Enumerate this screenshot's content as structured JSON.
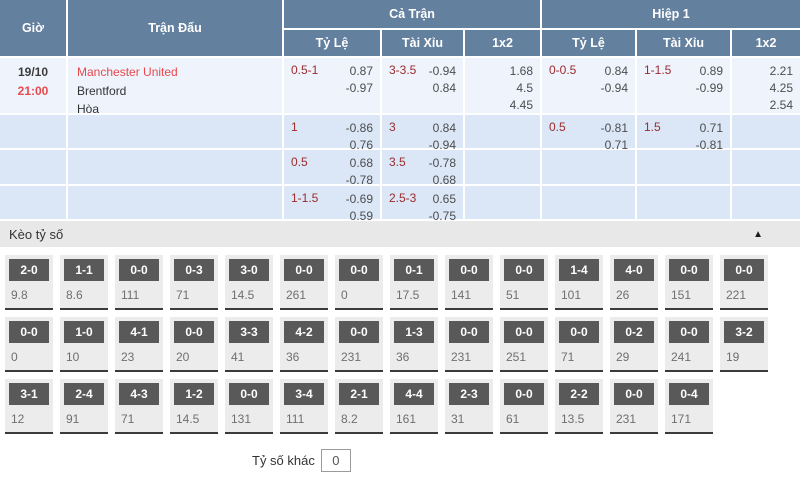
{
  "colors": {
    "header_blue": "#64809f",
    "row_light": "#eef3fc",
    "row_blue": "#dbe7f7",
    "red": "#e9494d",
    "maroon": "#9b2b2b",
    "box_grey": "#595959"
  },
  "table": {
    "headers": {
      "time": "Giờ",
      "match": "Trận Đấu",
      "full_match": "Cả Trận",
      "first_half": "Hiệp 1",
      "handicap": "Tỷ Lệ",
      "over_under": "Tài Xỉu",
      "one_x_two": "1x2"
    },
    "match": {
      "date": "19/10",
      "time": "21:00",
      "home": "Manchester United",
      "away": "Brentford",
      "draw": "Hòa"
    },
    "rows": [
      {
        "ft": {
          "hdp": {
            "line": "0.5-1",
            "odds": [
              "0.87",
              "-0.97"
            ]
          },
          "ou": {
            "line": "3-3.5",
            "odds": [
              "-0.94",
              "0.84"
            ]
          },
          "x12": [
            "1.68",
            "4.5",
            "4.45"
          ]
        },
        "h1": {
          "hdp": {
            "line": "0-0.5",
            "odds": [
              "0.84",
              "-0.94"
            ]
          },
          "ou": {
            "line": "1-1.5",
            "odds": [
              "0.89",
              "-0.99"
            ]
          },
          "x12": [
            "2.21",
            "4.25",
            "2.54"
          ]
        }
      },
      {
        "ft": {
          "hdp": {
            "line": "1",
            "odds": [
              "-0.86",
              "0.76"
            ]
          },
          "ou": {
            "line": "3",
            "odds": [
              "0.84",
              "-0.94"
            ]
          },
          "x12": []
        },
        "h1": {
          "hdp": {
            "line": "0.5",
            "odds": [
              "-0.81",
              "0.71"
            ]
          },
          "ou": {
            "line": "1.5",
            "odds": [
              "0.71",
              "-0.81"
            ]
          },
          "x12": []
        }
      },
      {
        "ft": {
          "hdp": {
            "line": "0.5",
            "odds": [
              "0.68",
              "-0.78"
            ]
          },
          "ou": {
            "line": "3.5",
            "odds": [
              "-0.78",
              "0.68"
            ]
          },
          "x12": []
        },
        "h1": {
          "hdp": null,
          "ou": null,
          "x12": []
        }
      },
      {
        "ft": {
          "hdp": {
            "line": "1-1.5",
            "odds": [
              "-0.69",
              "0.59"
            ]
          },
          "ou": {
            "line": "2.5-3",
            "odds": [
              "0.65",
              "-0.75"
            ]
          },
          "x12": []
        },
        "h1": {
          "hdp": null,
          "ou": null,
          "x12": []
        }
      }
    ]
  },
  "score_section": {
    "title": "Kèo tỷ số",
    "collapse_icon": "▲",
    "rows": [
      [
        {
          "score": "2-0",
          "odds": "9.8"
        },
        {
          "score": "1-1",
          "odds": "8.6"
        },
        {
          "score": "0-0",
          "odds": "111"
        },
        {
          "score": "0-3",
          "odds": "71"
        },
        {
          "score": "3-0",
          "odds": "14.5"
        },
        {
          "score": "0-0",
          "odds": "261"
        },
        {
          "score": "0-0",
          "odds": "0"
        },
        {
          "score": "0-1",
          "odds": "17.5"
        },
        {
          "score": "0-0",
          "odds": "141"
        },
        {
          "score": "0-0",
          "odds": "51"
        },
        {
          "score": "1-4",
          "odds": "101"
        },
        {
          "score": "4-0",
          "odds": "26"
        },
        {
          "score": "0-0",
          "odds": "151"
        },
        {
          "score": "0-0",
          "odds": "221"
        }
      ],
      [
        {
          "score": "0-0",
          "odds": "0"
        },
        {
          "score": "1-0",
          "odds": "10"
        },
        {
          "score": "4-1",
          "odds": "23"
        },
        {
          "score": "0-0",
          "odds": "20"
        },
        {
          "score": "3-3",
          "odds": "41"
        },
        {
          "score": "4-2",
          "odds": "36"
        },
        {
          "score": "0-0",
          "odds": "231"
        },
        {
          "score": "1-3",
          "odds": "36"
        },
        {
          "score": "0-0",
          "odds": "231"
        },
        {
          "score": "0-0",
          "odds": "251"
        },
        {
          "score": "0-0",
          "odds": "71"
        },
        {
          "score": "0-2",
          "odds": "29"
        },
        {
          "score": "0-0",
          "odds": "241"
        },
        {
          "score": "3-2",
          "odds": "19"
        }
      ],
      [
        {
          "score": "3-1",
          "odds": "12"
        },
        {
          "score": "2-4",
          "odds": "91"
        },
        {
          "score": "4-3",
          "odds": "71"
        },
        {
          "score": "1-2",
          "odds": "14.5"
        },
        {
          "score": "0-0",
          "odds": "131"
        },
        {
          "score": "3-4",
          "odds": "111"
        },
        {
          "score": "2-1",
          "odds": "8.2"
        },
        {
          "score": "4-4",
          "odds": "161"
        },
        {
          "score": "2-3",
          "odds": "31"
        },
        {
          "score": "0-0",
          "odds": "61"
        },
        {
          "score": "2-2",
          "odds": "13.5"
        },
        {
          "score": "0-0",
          "odds": "231"
        },
        {
          "score": "0-4",
          "odds": "171"
        },
        null
      ]
    ],
    "other": {
      "label": "Tỷ số khác",
      "value": "0"
    }
  }
}
